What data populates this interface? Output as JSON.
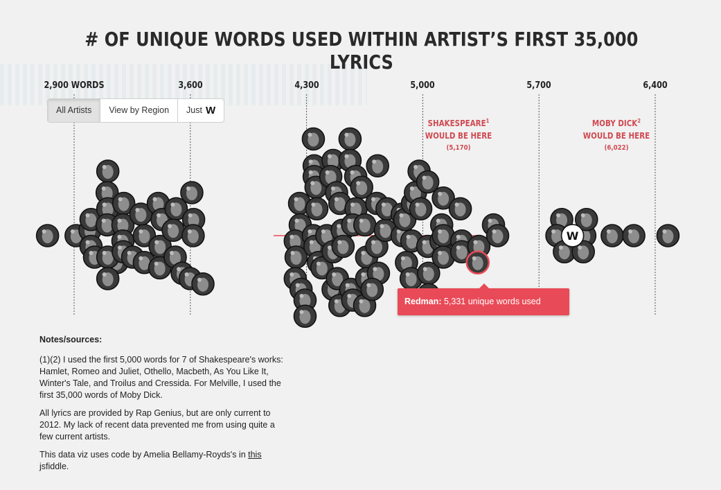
{
  "title": "# OF UNIQUE WORDS USED WITHIN ARTIST’S FIRST 35,000 LYRICS",
  "tabs": [
    {
      "label": "All Artists",
      "active": true
    },
    {
      "label": "View by Region",
      "active": false
    },
    {
      "label": "Just",
      "active": false,
      "icon": "wu-tang-icon"
    }
  ],
  "colors": {
    "accent": "#e94a57",
    "annotation": "#d04a52",
    "bubble": "#1b1b1b",
    "highlight_ring": "#e94a57"
  },
  "chart_data": {
    "type": "scatter",
    "title": "# OF UNIQUE WORDS USED WITHIN ARTIST’S FIRST 35,000 LYRICS",
    "xlabel": "",
    "ylabel": "",
    "xlim": [
      2560,
      6720
    ],
    "grid": true,
    "ticks": [
      {
        "value": 2900,
        "label": "2,900 WORDS"
      },
      {
        "value": 3600,
        "label": "3,600"
      },
      {
        "value": 4300,
        "label": "4,300"
      },
      {
        "value": 5000,
        "label": "5,000"
      },
      {
        "value": 5700,
        "label": "5,700"
      },
      {
        "value": 6400,
        "label": "6,400"
      }
    ],
    "reference_lines": [
      {
        "label_line1": "SHAKESPEARE",
        "sup": "1",
        "label_line2": "WOULD BE HERE",
        "value_label": "(5,170)",
        "value": 5170
      },
      {
        "label_line1": "MOBY DICK",
        "sup": "2",
        "label_line2": "WOULD BE HERE",
        "value_label": "(6,022)",
        "value": 6022
      }
    ],
    "artists": [
      {
        "x": 2740,
        "y": 0
      },
      {
        "x": 2912,
        "y": 0
      },
      {
        "x": 2996,
        "y": 0.5
      },
      {
        "x": 3002,
        "y": -1.0
      },
      {
        "x": 3002,
        "y": 1.5
      },
      {
        "x": 3023,
        "y": -2.0
      },
      {
        "x": 3103,
        "y": 6.0
      },
      {
        "x": 3099,
        "y": 4.0
      },
      {
        "x": 3103,
        "y": 2.5
      },
      {
        "x": 3099,
        "y": 1.0
      },
      {
        "x": 3158,
        "y": -2.5
      },
      {
        "x": 3199,
        "y": 3.0
      },
      {
        "x": 3194,
        "y": 1.0
      },
      {
        "x": 3194,
        "y": -0.5
      },
      {
        "x": 3103,
        "y": -2.0
      },
      {
        "x": 3103,
        "y": -4.0
      },
      {
        "x": 3196,
        "y": -1.5
      },
      {
        "x": 3253,
        "y": -2.0
      },
      {
        "x": 3302,
        "y": 2.0
      },
      {
        "x": 3323,
        "y": 0
      },
      {
        "x": 3323,
        "y": -2.5
      },
      {
        "x": 3407,
        "y": 3.0
      },
      {
        "x": 3430,
        "y": 1.5
      },
      {
        "x": 3418,
        "y": -1.0
      },
      {
        "x": 3416,
        "y": -3.0
      },
      {
        "x": 3515,
        "y": 2.5
      },
      {
        "x": 3497,
        "y": 0.5
      },
      {
        "x": 3509,
        "y": -2.0
      },
      {
        "x": 3551,
        "y": -3.5
      },
      {
        "x": 3609,
        "y": 4.0
      },
      {
        "x": 3620,
        "y": 1.5
      },
      {
        "x": 3617,
        "y": 0
      },
      {
        "x": 3599,
        "y": -4.0
      },
      {
        "x": 3676,
        "y": -4.5
      },
      {
        "x": 4258,
        "y": 3.0
      },
      {
        "x": 4262,
        "y": 1.0
      },
      {
        "x": 4232,
        "y": -0.5
      },
      {
        "x": 4237,
        "y": -2.0
      },
      {
        "x": 4232,
        "y": -4.0
      },
      {
        "x": 4267,
        "y": -5.0
      },
      {
        "x": 4291,
        "y": -6.0
      },
      {
        "x": 4291,
        "y": -7.5
      },
      {
        "x": 4341,
        "y": 9.0
      },
      {
        "x": 4346,
        "y": 6.5
      },
      {
        "x": 4346,
        "y": 5.5
      },
      {
        "x": 4357,
        "y": 4.5
      },
      {
        "x": 4362,
        "y": 2.5
      },
      {
        "x": 4341,
        "y": 0
      },
      {
        "x": 4351,
        "y": -1.0
      },
      {
        "x": 4372,
        "y": -2.5
      },
      {
        "x": 4393,
        "y": -3.0
      },
      {
        "x": 4422,
        "y": 0
      },
      {
        "x": 4460,
        "y": -1.5
      },
      {
        "x": 4460,
        "y": -5.0
      },
      {
        "x": 4460,
        "y": 7.0
      },
      {
        "x": 4446,
        "y": 5.5
      },
      {
        "x": 4481,
        "y": 4.0
      },
      {
        "x": 4501,
        "y": 3.0
      },
      {
        "x": 4515,
        "y": 0.5
      },
      {
        "x": 4520,
        "y": -1.0
      },
      {
        "x": 4501,
        "y": -6.5
      },
      {
        "x": 4486,
        "y": -4.0
      },
      {
        "x": 4562,
        "y": 9.0
      },
      {
        "x": 4562,
        "y": 7.0
      },
      {
        "x": 4596,
        "y": 5.5
      },
      {
        "x": 4598,
        "y": 2.5
      },
      {
        "x": 4578,
        "y": 1.0
      },
      {
        "x": 4567,
        "y": -5.0
      },
      {
        "x": 4578,
        "y": -6.0
      },
      {
        "x": 4650,
        "y": -6.5
      },
      {
        "x": 4632,
        "y": 4.5
      },
      {
        "x": 4651,
        "y": 1.0
      },
      {
        "x": 4662,
        "y": -2.0
      },
      {
        "x": 4662,
        "y": -4.0
      },
      {
        "x": 4728,
        "y": 6.5
      },
      {
        "x": 4723,
        "y": 3.0
      },
      {
        "x": 4723,
        "y": -1.0
      },
      {
        "x": 4733,
        "y": -3.5
      },
      {
        "x": 4695,
        "y": -5.0
      },
      {
        "x": 4775,
        "y": 0.5
      },
      {
        "x": 4785,
        "y": 2.5
      },
      {
        "x": 4876,
        "y": 2.0
      },
      {
        "x": 4876,
        "y": 0
      },
      {
        "x": 4892,
        "y": 1.5
      },
      {
        "x": 4902,
        "y": -2.5
      },
      {
        "x": 4930,
        "y": -4.0
      },
      {
        "x": 4934,
        "y": -0.5
      },
      {
        "x": 4938,
        "y": 3.0
      },
      {
        "x": 4956,
        "y": 4.0
      },
      {
        "x": 4978,
        "y": 6.0
      },
      {
        "x": 4988,
        "y": 2.5
      },
      {
        "x": 5030,
        "y": 5.0
      },
      {
        "x": 5030,
        "y": -1.0
      },
      {
        "x": 5035,
        "y": -3.5
      },
      {
        "x": 5035,
        "y": -5.5
      },
      {
        "x": 5124,
        "y": 3.5
      },
      {
        "x": 5114,
        "y": 1.0
      },
      {
        "x": 5110,
        "y": -0.5
      },
      {
        "x": 5124,
        "y": 0
      },
      {
        "x": 5124,
        "y": -2.0
      },
      {
        "x": 5226,
        "y": 2.5
      },
      {
        "x": 5235,
        "y": -0.5
      },
      {
        "x": 5235,
        "y": -1.5
      },
      {
        "x": 5338,
        "y": -1.0
      },
      {
        "x": 5426,
        "y": 1.0
      },
      {
        "x": 5451,
        "y": 0
      },
      {
        "x": 5331,
        "y": -2.5,
        "highlight": true,
        "name": "Redman"
      },
      {
        "x": 5837,
        "y": 1.5
      },
      {
        "x": 5808,
        "y": 0
      },
      {
        "x": 5976,
        "y": 0
      },
      {
        "x": 5986,
        "y": 1.5
      },
      {
        "x": 5853,
        "y": -1.5
      },
      {
        "x": 5967,
        "y": -1.5
      },
      {
        "x": 5902,
        "y": 0,
        "icon": true
      },
      {
        "x": 6141,
        "y": 0
      },
      {
        "x": 6271,
        "y": 0
      },
      {
        "x": 6477,
        "y": 0
      }
    ]
  },
  "tooltip": {
    "name": "Redman:",
    "value": "5,331",
    "text": "unique words used"
  },
  "notes": {
    "heading": "Notes/sources:",
    "p1": "(1)(2) I used the first 5,000 words for 7 of Shakespeare's works: Hamlet, Romeo and Juliet, Othello, Macbeth, As You Like It, Winter's Tale, and Troilus and Cressida. For Melville, I used the first 35,000 words of Moby Dick.",
    "p2": "All lyrics are provided by Rap Genius, but are only current to 2012. My lack of recent data prevented me from using quite a few current artists.",
    "p3_before": "This data viz uses code by Amelia Bellamy-Royds's in ",
    "p3_link": "this",
    "p3_after": " jsfiddle."
  }
}
